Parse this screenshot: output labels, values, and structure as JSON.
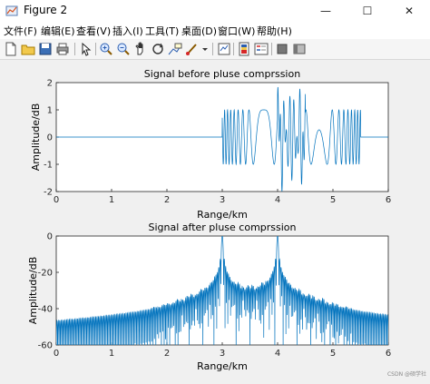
{
  "window": {
    "title": "Figure 2",
    "controls": {
      "minimize": "—",
      "maximize": "☐",
      "close": "✕"
    }
  },
  "menu": {
    "items": [
      "文件(F)",
      "编辑(E)",
      "查看(V)",
      "插入(I)",
      "工具(T)",
      "桌面(D)",
      "窗口(W)",
      "帮助(H)"
    ]
  },
  "toolbar": {
    "icons": [
      "new-figure-icon",
      "open-file-icon",
      "save-icon",
      "print-icon",
      "pointer-icon",
      "zoom-in-icon",
      "zoom-out-icon",
      "pan-icon",
      "rotate-3d-icon",
      "data-cursor-icon",
      "brush-icon",
      "brush-dropdown-icon",
      "link-plot-icon",
      "insert-colorbar-icon",
      "insert-legend-icon",
      "hide-plot-tools-icon",
      "show-plot-tools-icon"
    ]
  },
  "watermark": "CSDN @硕学社",
  "chart_data": [
    {
      "type": "line",
      "title": "Signal before pluse comprssion",
      "xlabel": "Range/km",
      "ylabel": "Amplitude/dB",
      "xlim": [
        0,
        6
      ],
      "ylim": [
        -2,
        2
      ],
      "xticks": [
        "0",
        "1",
        "2",
        "3",
        "4",
        "5",
        "6"
      ],
      "yticks": [
        "-2",
        "-1",
        "0",
        "1",
        "2"
      ],
      "grid": false,
      "series": [
        {
          "color": "#0072bd",
          "description_points": [
            {
              "x": 0,
              "y": 0
            },
            {
              "x": 3.0,
              "y": 0
            },
            {
              "x": 3.0,
              "y": 1
            },
            {
              "x": 3.0,
              "y": -1
            },
            {
              "x": 4.0,
              "y": 1.9
            },
            {
              "x": 4.0,
              "y": -2
            },
            {
              "x": 5.5,
              "y": 1
            },
            {
              "x": 5.5,
              "y": -1
            },
            {
              "x": 5.5,
              "y": 0
            },
            {
              "x": 6,
              "y": 0
            }
          ]
        }
      ]
    },
    {
      "type": "line",
      "title": "Signal after pluse comprssion",
      "xlabel": "Range/km",
      "ylabel": "Amplitude/dB",
      "xlim": [
        0,
        6
      ],
      "ylim": [
        -60,
        0
      ],
      "xticks": [
        "0",
        "1",
        "2",
        "3",
        "4",
        "5",
        "6"
      ],
      "yticks": [
        "-60",
        "-40",
        "-20",
        "0"
      ],
      "grid": false,
      "series": [
        {
          "color": "#0072bd",
          "peaks": [
            {
              "x": 3.0,
              "y": 0
            },
            {
              "x": 4.0,
              "y": 0
            }
          ],
          "sidelobe_envelope": [
            {
              "x": 1.7,
              "y": -60
            },
            {
              "x": 2.3,
              "y": -45
            },
            {
              "x": 3.0,
              "y": -38
            },
            {
              "x": 3.5,
              "y": -37
            },
            {
              "x": 4.0,
              "y": -38
            },
            {
              "x": 4.8,
              "y": -45
            },
            {
              "x": 5.4,
              "y": -60
            }
          ]
        }
      ]
    }
  ]
}
